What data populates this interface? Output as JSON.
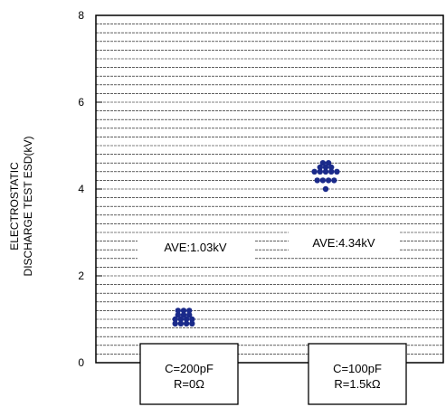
{
  "chart_data": {
    "type": "scatter",
    "ylabel_lines": [
      "ELECTROSTATIC",
      "DISCHARGE TEST ESD(kV)"
    ],
    "ylim": [
      0,
      8
    ],
    "yticks": [
      0,
      2,
      4,
      6,
      8
    ],
    "grid": "horizontal-dashed",
    "gridStep": 0.2,
    "categories": [
      {
        "lines": [
          "C=200pF",
          "R=0Ω"
        ],
        "average_label": "AVE:1.03kV"
      },
      {
        "lines": [
          "C=100pF",
          "R=1.5kΩ"
        ],
        "average_label": "AVE:4.34kV"
      }
    ],
    "series": [
      {
        "color": "#1a2a8a",
        "points": [
          {
            "category": 0,
            "y": 1.2
          },
          {
            "category": 0,
            "y": 1.2
          },
          {
            "category": 0,
            "y": 1.2
          },
          {
            "category": 0,
            "y": 1.1
          },
          {
            "category": 0,
            "y": 1.1
          },
          {
            "category": 0,
            "y": 1.1
          },
          {
            "category": 0,
            "y": 1.0
          },
          {
            "category": 0,
            "y": 1.0
          },
          {
            "category": 0,
            "y": 1.0
          },
          {
            "category": 0,
            "y": 1.0
          },
          {
            "category": 0,
            "y": 0.9
          },
          {
            "category": 0,
            "y": 0.9
          },
          {
            "category": 0,
            "y": 0.9
          },
          {
            "category": 0,
            "y": 0.9
          },
          {
            "category": 1,
            "y": 4.6
          },
          {
            "category": 1,
            "y": 4.6
          },
          {
            "category": 1,
            "y": 4.5
          },
          {
            "category": 1,
            "y": 4.5
          },
          {
            "category": 1,
            "y": 4.5
          },
          {
            "category": 1,
            "y": 4.4
          },
          {
            "category": 1,
            "y": 4.4
          },
          {
            "category": 1,
            "y": 4.4
          },
          {
            "category": 1,
            "y": 4.4
          },
          {
            "category": 1,
            "y": 4.4
          },
          {
            "category": 1,
            "y": 4.2
          },
          {
            "category": 1,
            "y": 4.2
          },
          {
            "category": 1,
            "y": 4.2
          },
          {
            "category": 1,
            "y": 4.2
          },
          {
            "category": 1,
            "y": 4.0
          }
        ]
      }
    ]
  }
}
